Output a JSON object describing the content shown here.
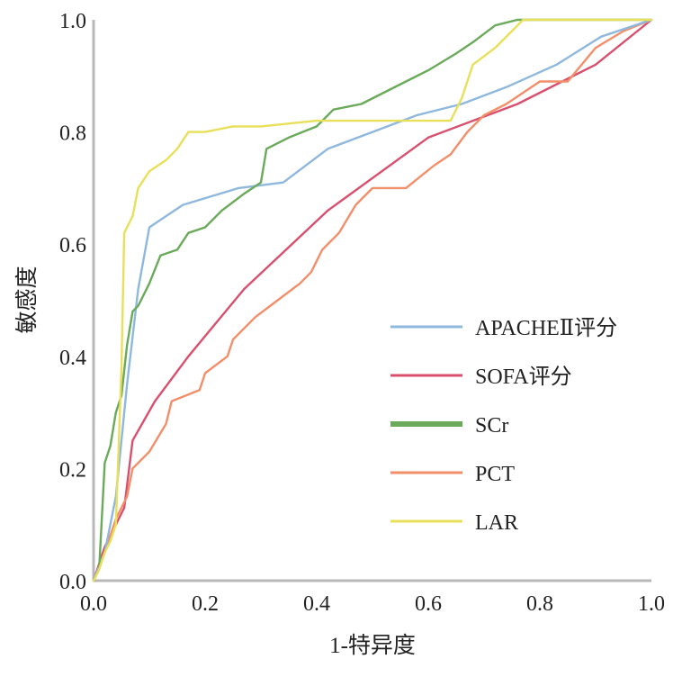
{
  "chart_data": {
    "type": "line",
    "title": "",
    "xlabel": "1-特异度",
    "ylabel": "敏感度",
    "xlim": [
      0,
      1
    ],
    "ylim": [
      0,
      1
    ],
    "x_ticks": [
      "0.0",
      "0.2",
      "0.4",
      "0.6",
      "0.8",
      "1.0"
    ],
    "y_ticks": [
      "0.0",
      "0.2",
      "0.4",
      "0.6",
      "0.8",
      "1.0"
    ],
    "grid": false,
    "legend_position": "bottom-right",
    "series": [
      {
        "name": "APACHEⅡ评分",
        "color": "#8fb8de",
        "points": [
          [
            0,
            0
          ],
          [
            0.02,
            0.05
          ],
          [
            0.04,
            0.15
          ],
          [
            0.06,
            0.35
          ],
          [
            0.08,
            0.52
          ],
          [
            0.1,
            0.63
          ],
          [
            0.16,
            0.67
          ],
          [
            0.26,
            0.7
          ],
          [
            0.34,
            0.71
          ],
          [
            0.42,
            0.77
          ],
          [
            0.5,
            0.8
          ],
          [
            0.58,
            0.83
          ],
          [
            0.66,
            0.85
          ],
          [
            0.74,
            0.88
          ],
          [
            0.83,
            0.92
          ],
          [
            0.91,
            0.97
          ],
          [
            1,
            1
          ]
        ]
      },
      {
        "name": "SOFA评分",
        "color": "#d9506e",
        "points": [
          [
            0,
            0
          ],
          [
            0.02,
            0.06
          ],
          [
            0.04,
            0.1
          ],
          [
            0.055,
            0.13
          ],
          [
            0.07,
            0.25
          ],
          [
            0.11,
            0.32
          ],
          [
            0.17,
            0.4
          ],
          [
            0.27,
            0.52
          ],
          [
            0.42,
            0.66
          ],
          [
            0.6,
            0.79
          ],
          [
            0.76,
            0.85
          ],
          [
            0.9,
            0.92
          ],
          [
            1,
            1
          ]
        ]
      },
      {
        "name": "SCr",
        "color": "#6aaa5a",
        "points": [
          [
            0,
            0
          ],
          [
            0.01,
            0.02
          ],
          [
            0.02,
            0.21
          ],
          [
            0.03,
            0.24
          ],
          [
            0.04,
            0.3
          ],
          [
            0.05,
            0.33
          ],
          [
            0.06,
            0.42
          ],
          [
            0.07,
            0.48
          ],
          [
            0.08,
            0.49
          ],
          [
            0.1,
            0.53
          ],
          [
            0.12,
            0.58
          ],
          [
            0.15,
            0.59
          ],
          [
            0.17,
            0.62
          ],
          [
            0.2,
            0.63
          ],
          [
            0.23,
            0.66
          ],
          [
            0.27,
            0.69
          ],
          [
            0.3,
            0.71
          ],
          [
            0.31,
            0.77
          ],
          [
            0.35,
            0.79
          ],
          [
            0.4,
            0.81
          ],
          [
            0.43,
            0.84
          ],
          [
            0.48,
            0.85
          ],
          [
            0.52,
            0.87
          ],
          [
            0.56,
            0.89
          ],
          [
            0.6,
            0.91
          ],
          [
            0.65,
            0.94
          ],
          [
            0.68,
            0.96
          ],
          [
            0.72,
            0.99
          ],
          [
            0.76,
            1
          ],
          [
            1,
            1
          ]
        ]
      },
      {
        "name": "PCT",
        "color": "#f28f6a",
        "points": [
          [
            0,
            0
          ],
          [
            0.02,
            0.05
          ],
          [
            0.04,
            0.11
          ],
          [
            0.06,
            0.15
          ],
          [
            0.07,
            0.2
          ],
          [
            0.1,
            0.23
          ],
          [
            0.13,
            0.28
          ],
          [
            0.14,
            0.32
          ],
          [
            0.19,
            0.34
          ],
          [
            0.2,
            0.37
          ],
          [
            0.24,
            0.4
          ],
          [
            0.25,
            0.43
          ],
          [
            0.29,
            0.47
          ],
          [
            0.33,
            0.5
          ],
          [
            0.37,
            0.53
          ],
          [
            0.39,
            0.55
          ],
          [
            0.41,
            0.59
          ],
          [
            0.44,
            0.62
          ],
          [
            0.47,
            0.67
          ],
          [
            0.5,
            0.7
          ],
          [
            0.56,
            0.7
          ],
          [
            0.61,
            0.74
          ],
          [
            0.64,
            0.76
          ],
          [
            0.67,
            0.8
          ],
          [
            0.7,
            0.83
          ],
          [
            0.74,
            0.85
          ],
          [
            0.8,
            0.89
          ],
          [
            0.85,
            0.89
          ],
          [
            0.9,
            0.95
          ],
          [
            0.95,
            0.98
          ],
          [
            1,
            1
          ]
        ]
      },
      {
        "name": "LAR",
        "color": "#e8e05a",
        "points": [
          [
            0,
            0
          ],
          [
            0.01,
            0.02
          ],
          [
            0.02,
            0.05
          ],
          [
            0.03,
            0.07
          ],
          [
            0.04,
            0.1
          ],
          [
            0.05,
            0.38
          ],
          [
            0.055,
            0.62
          ],
          [
            0.07,
            0.65
          ],
          [
            0.08,
            0.7
          ],
          [
            0.1,
            0.73
          ],
          [
            0.13,
            0.75
          ],
          [
            0.15,
            0.77
          ],
          [
            0.17,
            0.8
          ],
          [
            0.2,
            0.8
          ],
          [
            0.25,
            0.81
          ],
          [
            0.3,
            0.81
          ],
          [
            0.4,
            0.82
          ],
          [
            0.5,
            0.82
          ],
          [
            0.58,
            0.82
          ],
          [
            0.64,
            0.82
          ],
          [
            0.66,
            0.86
          ],
          [
            0.68,
            0.92
          ],
          [
            0.72,
            0.95
          ],
          [
            0.75,
            0.98
          ],
          [
            0.77,
            1
          ],
          [
            1,
            1
          ]
        ]
      }
    ]
  }
}
